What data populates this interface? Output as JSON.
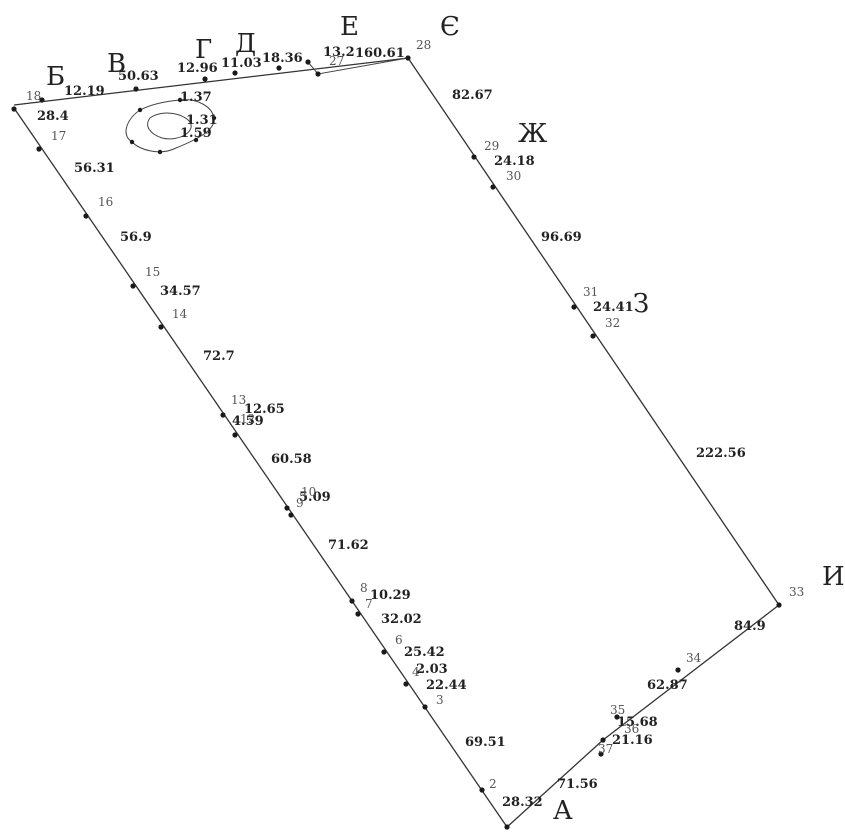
{
  "diagram": {
    "corner_labels": [
      "А",
      "Б",
      "В",
      "Г",
      "Д",
      "Е",
      "Є",
      "Ж",
      "З",
      "И"
    ],
    "segment_lengths": [
      "28.32",
      "69.51",
      "22.44",
      "2.03",
      "25.42",
      "32.02",
      "10.29",
      "71.62",
      "5.09",
      "60.58",
      "4.59",
      "12.65",
      "72.7",
      "34.57",
      "56.9",
      "56.31",
      "28.4",
      "12.19",
      "50.63",
      "12.96",
      "11.03",
      "18.36",
      "13.2",
      "160.61",
      "82.67",
      "24.18",
      "96.69",
      "24.41",
      "222.56",
      "84.9",
      "62.87",
      "15.68",
      "21.16",
      "71.56",
      "1.37",
      "1.31",
      "1.59"
    ],
    "point_numbers": [
      "2",
      "3",
      "4",
      "6",
      "7",
      "8",
      "9",
      "10",
      "12",
      "13",
      "14",
      "15",
      "16",
      "17",
      "18",
      "27",
      "28",
      "29",
      "30",
      "31",
      "32",
      "33",
      "34",
      "35",
      "36",
      "37"
    ]
  }
}
